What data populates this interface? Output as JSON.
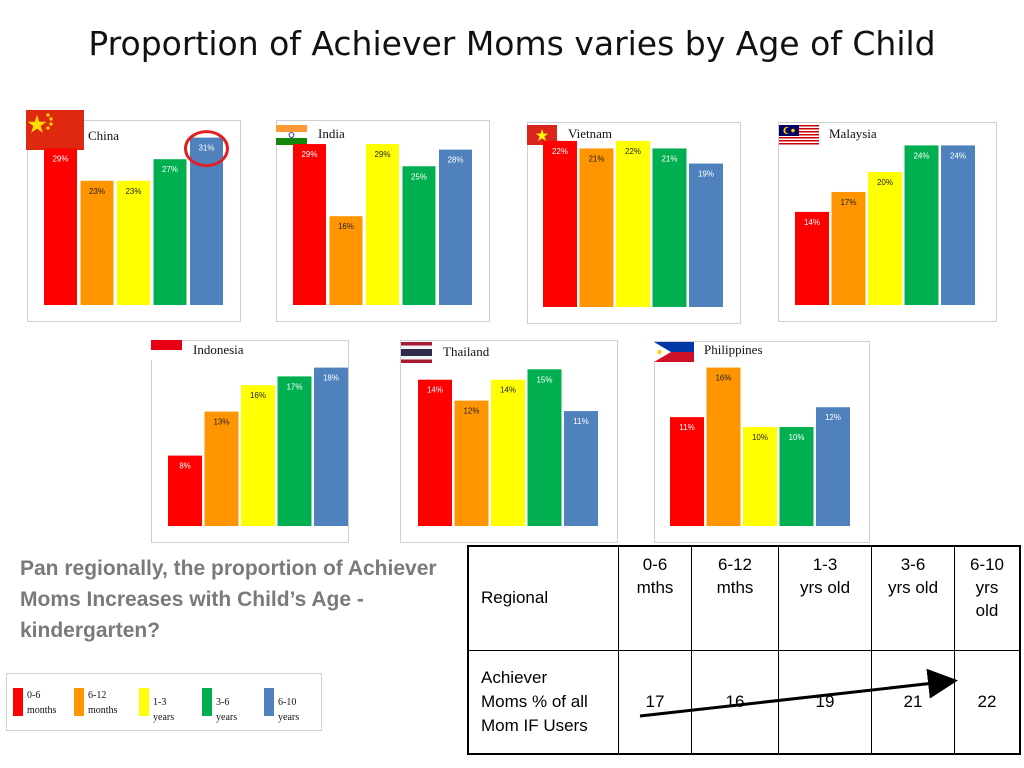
{
  "title": "Proportion of Achiever Moms varies by Age of Child",
  "summary": "Pan regionally, the proportion of Achiever Moms Increases with Child’s Age - kindergarten?",
  "colors": {
    "c06": "#ff0000",
    "c612": "#ff9500",
    "c13": "#ffff00",
    "c36": "#00b050",
    "c610": "#4f81bd",
    "highlight": "#e02020"
  },
  "chart_data": [
    {
      "type": "bar",
      "country": "China",
      "categories": [
        "0-6 months",
        "6-12 months",
        "1-3 years",
        "3-6 years",
        "6-10 years"
      ],
      "values": [
        29,
        23,
        23,
        27,
        31
      ],
      "data_labels": [
        "29%",
        "23%",
        "23%",
        "27%",
        "31%"
      ],
      "highlighted_category": "6-10 years"
    },
    {
      "type": "bar",
      "country": "India",
      "categories": [
        "0-6 months",
        "6-12 months",
        "1-3 years",
        "3-6 years",
        "6-10 years"
      ],
      "values": [
        29,
        16,
        29,
        25,
        28
      ],
      "data_labels": [
        "29%",
        "16%",
        "29%",
        "25%",
        "28%"
      ]
    },
    {
      "type": "bar",
      "country": "Vietnam",
      "categories": [
        "0-6 months",
        "6-12 months",
        "1-3 years",
        "3-6 years",
        "6-10 years"
      ],
      "values": [
        22,
        21,
        22,
        21,
        19
      ],
      "data_labels": [
        "22%",
        "21%",
        "22%",
        "21%",
        "19%"
      ]
    },
    {
      "type": "bar",
      "country": "Malaysia",
      "categories": [
        "0-6 months",
        "6-12 months",
        "1-3 years",
        "3-6 years",
        "6-10 years"
      ],
      "values": [
        14,
        17,
        20,
        24,
        24
      ],
      "data_labels": [
        "14%",
        "17%",
        "20%",
        "24%",
        "24%"
      ]
    },
    {
      "type": "bar",
      "country": "Indonesia",
      "categories": [
        "0-6 months",
        "6-12 months",
        "1-3 years",
        "3-6 years",
        "6-10 years"
      ],
      "values": [
        8,
        13,
        16,
        17,
        18
      ],
      "data_labels": [
        "8%",
        "13%",
        "16%",
        "17%",
        "18%"
      ]
    },
    {
      "type": "bar",
      "country": "Thailand",
      "categories": [
        "0-6 months",
        "6-12 months",
        "1-3 years",
        "3-6 years",
        "6-10 years"
      ],
      "values": [
        14,
        12,
        14,
        15,
        11
      ],
      "data_labels": [
        "14%",
        "12%",
        "14%",
        "15%",
        "11%"
      ]
    },
    {
      "type": "bar",
      "country": "Philippines",
      "categories": [
        "0-6 months",
        "6-12 months",
        "1-3 years",
        "3-6 years",
        "6-10 years"
      ],
      "values": [
        11,
        16,
        10,
        10,
        12
      ],
      "data_labels": [
        "11%",
        "16%",
        "10%",
        "10%",
        "12%"
      ]
    }
  ],
  "legend": [
    {
      "line1": "0-6",
      "line2": "months",
      "color": "#ff0000"
    },
    {
      "line1": "6-12",
      "line2": "months",
      "color": "#ff9500"
    },
    {
      "line1": "1-3 years",
      "line2": "",
      "color": "#ffff00"
    },
    {
      "line1": "3-6 years",
      "line2": "",
      "color": "#00b050"
    },
    {
      "line1": "6-10 years",
      "line2": "",
      "color": "#4f81bd"
    }
  ],
  "table": {
    "headers": [
      {
        "line1": "",
        "line2": "",
        "line3": ""
      },
      {
        "line1": "0-6",
        "line2": "mths",
        "line3": ""
      },
      {
        "line1": "6-12",
        "line2": "mths",
        "line3": ""
      },
      {
        "line1": "1-3",
        "line2": "yrs old",
        "line3": ""
      },
      {
        "line1": "3-6",
        "line2": "yrs old",
        "line3": ""
      },
      {
        "line1": "6-10",
        "line2": "yrs",
        "line3": "old"
      }
    ],
    "corner_label": "Regional",
    "row_label": {
      "line1": "Achiever",
      "line2": "Moms % of all",
      "line3": "Mom IF Users"
    },
    "values": [
      "17",
      "16",
      "19",
      "21",
      "22"
    ]
  }
}
